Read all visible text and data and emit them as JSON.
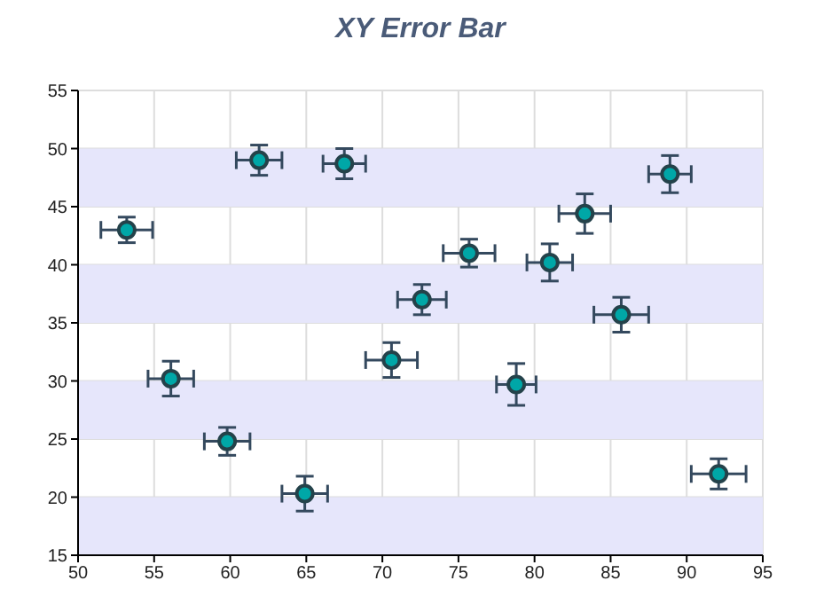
{
  "chart_data": {
    "type": "scatter",
    "title": "XY Error Bar",
    "x": [
      53.2,
      61.9,
      67.5,
      56.1,
      59.8,
      64.9,
      70.6,
      72.6,
      75.7,
      81.0,
      83.3,
      88.9,
      85.7,
      78.8,
      92.1
    ],
    "values": [
      43.0,
      49.0,
      48.7,
      30.2,
      24.8,
      20.3,
      31.8,
      37.0,
      41.0,
      40.2,
      44.4,
      47.8,
      35.7,
      29.7,
      22.0
    ],
    "xerrors": [
      1.7,
      1.5,
      1.4,
      1.5,
      1.5,
      1.5,
      1.7,
      1.6,
      1.7,
      1.5,
      1.7,
      1.4,
      1.8,
      1.3,
      1.8
    ],
    "errors": [
      1.1,
      1.3,
      1.3,
      1.5,
      1.2,
      1.5,
      1.5,
      1.3,
      1.2,
      1.6,
      1.7,
      1.6,
      1.5,
      1.8,
      1.3
    ],
    "color": "#00a7a7",
    "xlim": [
      50,
      95
    ],
    "xticks": [
      50,
      55,
      60,
      65,
      70,
      75,
      80,
      85,
      90,
      95
    ],
    "ylim": [
      15,
      55
    ],
    "yticks": [
      15,
      20,
      25,
      30,
      35,
      40,
      45,
      50,
      55
    ],
    "bands": [
      {
        "axis": "y",
        "from": 15,
        "to": 20,
        "color": "#e6e6fb"
      },
      {
        "axis": "y",
        "from": 25,
        "to": 30,
        "color": "#e6e6fb"
      },
      {
        "axis": "y",
        "from": 35,
        "to": 40,
        "color": "#e6e6fb"
      },
      {
        "axis": "y",
        "from": 45,
        "to": 50,
        "color": "#e6e6fb"
      }
    ],
    "grid": true,
    "marker": "circle"
  }
}
